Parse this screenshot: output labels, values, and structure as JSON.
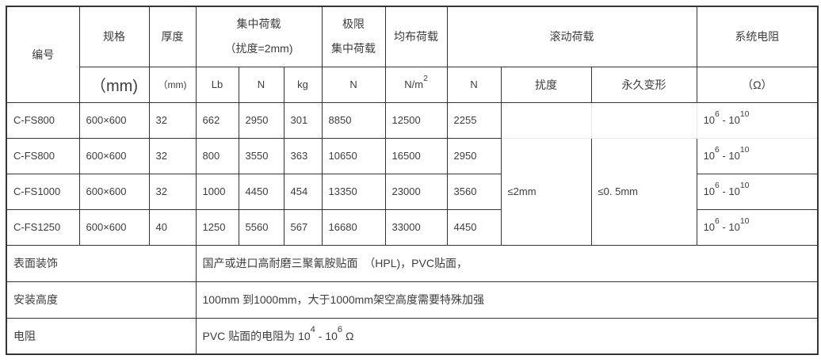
{
  "colors": {
    "border": "#343434",
    "border_light": "#e7e7e7",
    "text": "#3d3d3d",
    "background": "#ffffff"
  },
  "table": {
    "header": {
      "id": "编号",
      "spec": "规格",
      "spec_unit": "（mm)",
      "thickness": "厚度",
      "thickness_unit": "（mm)",
      "concentrated_load_line1": "集中荷载",
      "concentrated_load_line2": "（扰度=2mm)",
      "concentrated_sub": [
        "Lb",
        "N",
        "kg"
      ],
      "ultimate_load_line1": "极限",
      "ultimate_load_line2": "集中荷载",
      "ultimate_unit": "N",
      "uniform_load": "均布荷载",
      "uniform_unit": "N/m^2",
      "rolling_load": "滚动荷载",
      "rolling_sub_n": "N",
      "rolling_sub_deflection": "扰度",
      "rolling_sub_permanent": "永久变形",
      "resistance": "系统电阻",
      "resistance_unit": "（Ω）"
    },
    "rows": [
      {
        "id": "C-FS800",
        "spec": "600×600",
        "thickness": "32",
        "lb": "662",
        "n": "2950",
        "kg": "301",
        "ult": "8850",
        "udl": "12500",
        "rolling_n": "2255",
        "resistance": "10^6 - 10^10"
      },
      {
        "id": "C-FS800",
        "spec": "600×600",
        "thickness": "32",
        "lb": "800",
        "n": "3550",
        "kg": "363",
        "ult": "10650",
        "udl": "16500",
        "rolling_n": "2950",
        "resistance": "10^6 - 10^10"
      },
      {
        "id": "C-FS1000",
        "spec": "600×600",
        "thickness": "32",
        "lb": "1000",
        "n": "4450",
        "kg": "454",
        "ult": "13350",
        "udl": "23000",
        "rolling_n": "3560",
        "resistance": "10^6 - 10^10"
      },
      {
        "id": "C-FS1250",
        "spec": "600×600",
        "thickness": "40",
        "lb": "1250",
        "n": "5560",
        "kg": "567",
        "ult": "16680",
        "udl": "33000",
        "rolling_n": "4450",
        "resistance": "10^6 - 10^10"
      }
    ],
    "rolling_deflection_value": "≤2mm",
    "rolling_permanent_value": "≤0. 5mm",
    "footer_rows": [
      {
        "label": "表面装饰",
        "value": "国产或进口高耐磨三聚氰胺贴面  （HPL)，PVC贴面，"
      },
      {
        "label": "安装高度",
        "value": "100mm 到1000mm，大于1000mm架空高度需要特殊加强"
      },
      {
        "label": "电阻",
        "value": "PVC 贴面的电阻为 10^4 - 10^6 Ω"
      }
    ]
  }
}
